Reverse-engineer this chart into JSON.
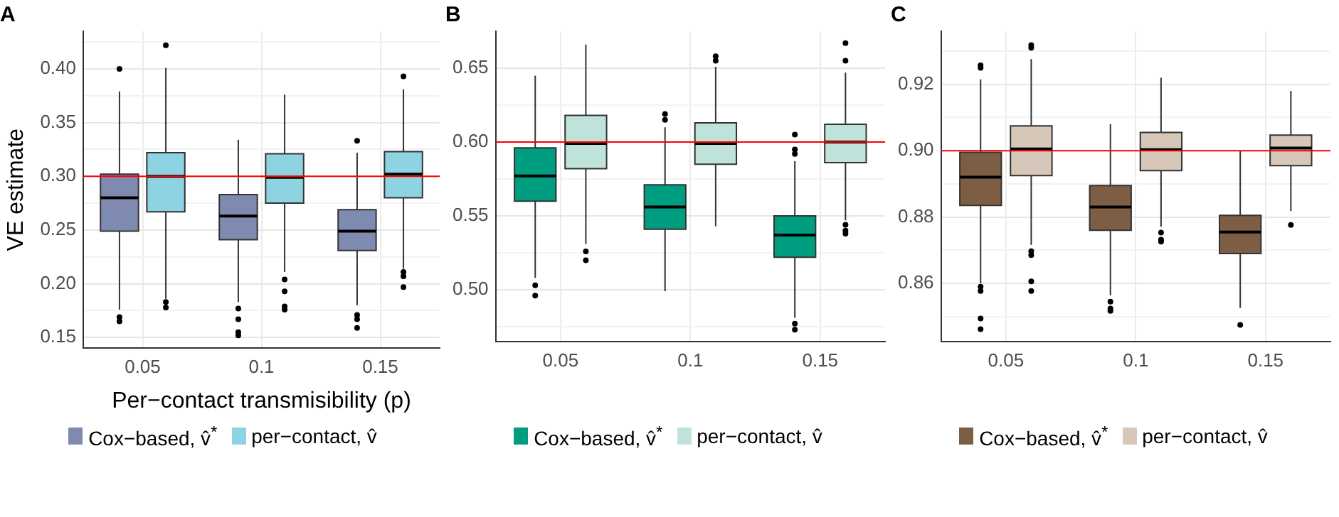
{
  "chart_data": [
    {
      "type": "box",
      "title": "A",
      "xlabel": "Per−contact transmisibility (p)",
      "ylabel": "VE estimate",
      "categories": [
        "0.05",
        "0.1",
        "0.15"
      ],
      "series": [
        {
          "name": "Cox−based, v̂$^{*}$",
          "color": "#7f8ab0",
          "boxes": [
            {
              "low": 0.176,
              "q1": 0.249,
              "median": 0.28,
              "q3": 0.302,
              "high": 0.379,
              "outliers": [
                0.4,
                0.169,
                0.165
              ]
            },
            {
              "low": 0.183,
              "q1": 0.241,
              "median": 0.263,
              "q3": 0.283,
              "high": 0.334,
              "outliers": [
                0.177,
                0.167,
                0.155,
                0.152
              ]
            },
            {
              "low": 0.18,
              "q1": 0.231,
              "median": 0.249,
              "q3": 0.269,
              "high": 0.322,
              "outliers": [
                0.333,
                0.171,
                0.167,
                0.159
              ]
            }
          ]
        },
        {
          "name": "per−contact, v̂",
          "color": "#8dd3e2",
          "boxes": [
            {
              "low": 0.186,
              "q1": 0.267,
              "median": 0.3,
              "q3": 0.322,
              "high": 0.401,
              "outliers": [
                0.422,
                0.183,
                0.178
              ]
            },
            {
              "low": 0.211,
              "q1": 0.275,
              "median": 0.299,
              "q3": 0.321,
              "high": 0.376,
              "outliers": [
                0.204,
                0.193,
                0.179,
                0.176
              ]
            },
            {
              "low": 0.214,
              "q1": 0.28,
              "median": 0.302,
              "q3": 0.323,
              "high": 0.381,
              "outliers": [
                0.393,
                0.211,
                0.207,
                0.197
              ]
            }
          ]
        }
      ],
      "ylim": [
        0.14,
        0.435
      ],
      "yticks": [
        {
          "value": 0.15,
          "label": "0.15"
        },
        {
          "value": 0.175,
          "label": null
        },
        {
          "value": 0.2,
          "label": "0.20"
        },
        {
          "value": 0.225,
          "label": null
        },
        {
          "value": 0.25,
          "label": "0.25"
        },
        {
          "value": 0.275,
          "label": null
        },
        {
          "value": 0.3,
          "label": "0.30"
        },
        {
          "value": 0.325,
          "label": null
        },
        {
          "value": 0.35,
          "label": "0.35"
        },
        {
          "value": 0.375,
          "label": null
        },
        {
          "value": 0.4,
          "label": "0.40"
        },
        {
          "value": 0.425,
          "label": null
        }
      ],
      "ref_lines": [
        {
          "axis": "y",
          "value": 0.3,
          "color": "#ff0000"
        }
      ],
      "grid": true,
      "legend": "bottom"
    },
    {
      "type": "box",
      "title": "B",
      "categories": [
        "0.05",
        "0.1",
        "0.15"
      ],
      "series": [
        {
          "name": "Cox−based, v̂$^{*}$",
          "color": "#009e80",
          "boxes": [
            {
              "low": 0.508,
              "q1": 0.56,
              "median": 0.577,
              "q3": 0.596,
              "high": 0.645,
              "outliers": [
                0.503,
                0.496
              ]
            },
            {
              "low": 0.499,
              "q1": 0.541,
              "median": 0.556,
              "q3": 0.571,
              "high": 0.61,
              "outliers": [
                0.619,
                0.615
              ]
            },
            {
              "low": 0.481,
              "q1": 0.522,
              "median": 0.537,
              "q3": 0.55,
              "high": 0.587,
              "outliers": [
                0.605,
                0.595,
                0.592,
                0.477,
                0.473
              ]
            }
          ]
        },
        {
          "name": "per−contact, v̂",
          "color": "#bfe3db",
          "boxes": [
            {
              "low": 0.531,
              "q1": 0.582,
              "median": 0.599,
              "q3": 0.618,
              "high": 0.666,
              "outliers": [
                0.526,
                0.52
              ]
            },
            {
              "low": 0.543,
              "q1": 0.585,
              "median": 0.599,
              "q3": 0.613,
              "high": 0.651,
              "outliers": [
                0.658,
                0.655
              ]
            },
            {
              "low": 0.547,
              "q1": 0.586,
              "median": 0.6,
              "q3": 0.612,
              "high": 0.647,
              "outliers": [
                0.667,
                0.655,
                0.544,
                0.54,
                0.538
              ]
            }
          ]
        }
      ],
      "ylim": [
        0.465,
        0.675
      ],
      "yticks": [
        {
          "value": 0.475,
          "label": null
        },
        {
          "value": 0.5,
          "label": "0.50"
        },
        {
          "value": 0.525,
          "label": null
        },
        {
          "value": 0.55,
          "label": "0.55"
        },
        {
          "value": 0.575,
          "label": null
        },
        {
          "value": 0.6,
          "label": "0.60"
        },
        {
          "value": 0.625,
          "label": null
        },
        {
          "value": 0.65,
          "label": "0.65"
        }
      ],
      "ref_lines": [
        {
          "axis": "y",
          "value": 0.6,
          "color": "#ff0000"
        }
      ],
      "grid": true,
      "legend": "bottom"
    },
    {
      "type": "box",
      "title": "C",
      "categories": [
        "0.05",
        "0.1",
        "0.15"
      ],
      "series": [
        {
          "name": "Cox−based, v̂$^{*}$",
          "color": "#7d5e44",
          "boxes": [
            {
              "low": 0.86,
              "q1": 0.8835,
              "median": 0.892,
              "q3": 0.8995,
              "high": 0.9215,
              "outliers": [
                0.9257,
                0.925,
                0.859,
                0.8577,
                0.8494,
                0.8462
              ]
            },
            {
              "low": 0.8564,
              "q1": 0.876,
              "median": 0.883,
              "q3": 0.8895,
              "high": 0.908,
              "outliers": [
                0.8545,
                0.8524,
                0.8517
              ]
            },
            {
              "low": 0.8526,
              "q1": 0.869,
              "median": 0.8755,
              "q3": 0.8805,
              "high": 0.9,
              "outliers": [
                0.8475
              ]
            }
          ]
        },
        {
          "name": "per−contact, v̂",
          "color": "#d6c7b8",
          "boxes": [
            {
              "low": 0.8716,
              "q1": 0.8925,
              "median": 0.9005,
              "q3": 0.9075,
              "high": 0.9276,
              "outliers": [
                0.9318,
                0.931,
                0.8697,
                0.8685,
                0.8606,
                0.8577
              ]
            },
            {
              "low": 0.8771,
              "q1": 0.894,
              "median": 0.9003,
              "q3": 0.9055,
              "high": 0.922,
              "outliers": [
                0.8753,
                0.8732,
                0.8726
              ]
            },
            {
              "low": 0.8818,
              "q1": 0.8955,
              "median": 0.9008,
              "q3": 0.9047,
              "high": 0.918,
              "outliers": [
                0.8776
              ]
            }
          ]
        }
      ],
      "ylim": [
        0.8425,
        0.936
      ],
      "yticks": [
        {
          "value": 0.85,
          "label": null
        },
        {
          "value": 0.86,
          "label": "0.86"
        },
        {
          "value": 0.87,
          "label": null
        },
        {
          "value": 0.88,
          "label": "0.88"
        },
        {
          "value": 0.89,
          "label": null
        },
        {
          "value": 0.9,
          "label": "0.90"
        },
        {
          "value": 0.91,
          "label": null
        },
        {
          "value": 0.92,
          "label": "0.92"
        },
        {
          "value": 0.93,
          "label": null
        }
      ],
      "ref_lines": [
        {
          "axis": "y",
          "value": 0.9,
          "color": "#ff0000"
        }
      ],
      "grid": true,
      "legend": "bottom"
    }
  ]
}
